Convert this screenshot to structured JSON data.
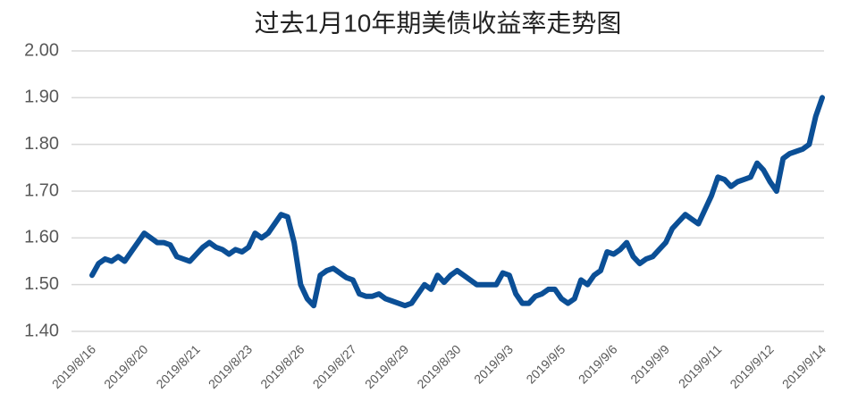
{
  "chart_data": {
    "type": "line",
    "title": "过去1月10年期美债收益率走势图",
    "categories": [
      "2019/8/16",
      null,
      null,
      null,
      null,
      null,
      null,
      null,
      "2019/8/20",
      null,
      null,
      null,
      null,
      null,
      null,
      null,
      "2019/8/21",
      null,
      null,
      null,
      null,
      null,
      null,
      null,
      "2019/8/23",
      null,
      null,
      null,
      null,
      null,
      null,
      null,
      "2019/8/26",
      null,
      null,
      null,
      null,
      null,
      null,
      null,
      "2019/8/27",
      null,
      null,
      null,
      null,
      null,
      null,
      null,
      "2019/8/29",
      null,
      null,
      null,
      null,
      null,
      null,
      null,
      "2019/8/30",
      null,
      null,
      null,
      null,
      null,
      null,
      null,
      "2019/9/3",
      null,
      null,
      null,
      null,
      null,
      null,
      null,
      "2019/9/5",
      null,
      null,
      null,
      null,
      null,
      null,
      null,
      "2019/9/6",
      null,
      null,
      null,
      null,
      null,
      null,
      null,
      "2019/9/9",
      null,
      null,
      null,
      null,
      null,
      null,
      null,
      "2019/9/11",
      null,
      null,
      null,
      null,
      null,
      null,
      null,
      "2019/9/12",
      null,
      null,
      null,
      null,
      null,
      null,
      null,
      "2019/9/14"
    ],
    "series": [
      {
        "name": "10年期美债收益率",
        "color": "#0b4f96",
        "values": [
          1.52,
          1.545,
          1.555,
          1.55,
          1.56,
          1.55,
          1.57,
          1.59,
          1.61,
          1.6,
          1.59,
          1.59,
          1.585,
          1.56,
          1.555,
          1.55,
          1.565,
          1.58,
          1.59,
          1.58,
          1.575,
          1.565,
          1.575,
          1.57,
          1.58,
          1.61,
          1.6,
          1.61,
          1.63,
          1.65,
          1.645,
          1.59,
          1.5,
          1.47,
          1.455,
          1.52,
          1.53,
          1.535,
          1.525,
          1.515,
          1.51,
          1.48,
          1.475,
          1.475,
          1.48,
          1.47,
          1.465,
          1.46,
          1.455,
          1.46,
          1.48,
          1.5,
          1.49,
          1.52,
          1.505,
          1.52,
          1.53,
          1.52,
          1.51,
          1.5,
          1.5,
          1.5,
          1.5,
          1.525,
          1.52,
          1.48,
          1.46,
          1.46,
          1.475,
          1.48,
          1.49,
          1.49,
          1.47,
          1.46,
          1.47,
          1.51,
          1.5,
          1.52,
          1.53,
          1.57,
          1.565,
          1.575,
          1.59,
          1.56,
          1.545,
          1.555,
          1.56,
          1.575,
          1.59,
          1.62,
          1.635,
          1.65,
          1.64,
          1.63,
          1.66,
          1.69,
          1.73,
          1.725,
          1.71,
          1.72,
          1.725,
          1.73,
          1.76,
          1.745,
          1.72,
          1.7,
          1.77,
          1.78,
          1.785,
          1.79,
          1.8,
          1.86,
          1.9
        ]
      }
    ],
    "ylim": [
      1.4,
      2.0
    ],
    "yticks": [
      {
        "value": 1.4,
        "label": "1.40"
      },
      {
        "value": 1.5,
        "label": "1.50"
      },
      {
        "value": 1.6,
        "label": "1.60"
      },
      {
        "value": 1.7,
        "label": "1.70"
      },
      {
        "value": 1.8,
        "label": "1.80"
      },
      {
        "value": 1.9,
        "label": "1.90"
      },
      {
        "value": 2.0,
        "label": "2.00"
      }
    ],
    "grid": true
  }
}
